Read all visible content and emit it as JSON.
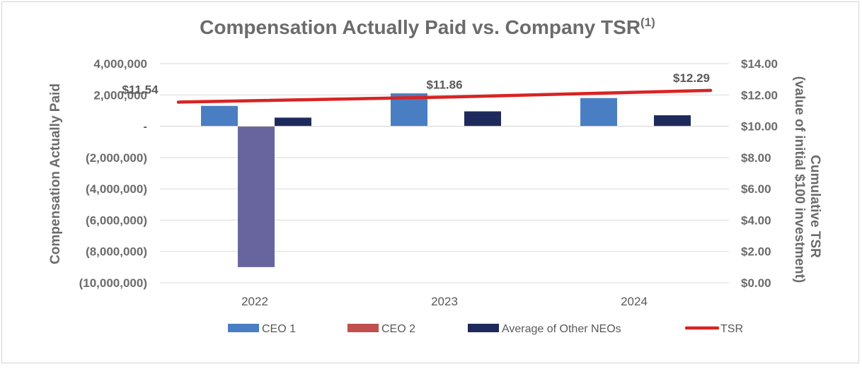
{
  "chart_data": {
    "type": "bar",
    "title": "Compensation Actually Paid vs. Company TSR",
    "title_superscript": "(1)",
    "categories": [
      "2022",
      "2023",
      "2024"
    ],
    "series": [
      {
        "name": "CEO 1",
        "kind": "bar",
        "axis": "left",
        "color": "#4a7ec2",
        "values": [
          1300000,
          2100000,
          1800000
        ]
      },
      {
        "name": "CEO 2",
        "kind": "bar",
        "axis": "left",
        "color": "#68649d",
        "legend_color": "#c0504d",
        "values": [
          -9000000,
          null,
          null
        ]
      },
      {
        "name": "Average of Other NEOs",
        "kind": "bar",
        "axis": "left",
        "color": "#1f2a5c",
        "values": [
          550000,
          950000,
          700000
        ]
      },
      {
        "name": "TSR",
        "kind": "line",
        "axis": "right",
        "color": "#d92323",
        "values": [
          11.54,
          11.86,
          12.29
        ]
      }
    ],
    "tsr_labels": [
      "$11.54",
      "$11.86",
      "$12.29"
    ],
    "left_axis": {
      "label": "Compensation Actually Paid",
      "range": [
        -10000000,
        4000000
      ],
      "ticks": [
        4000000,
        2000000,
        0,
        -2000000,
        -4000000,
        -6000000,
        -8000000,
        -10000000
      ],
      "tick_labels": [
        "4,000,000",
        "2,000,000",
        "-",
        "(2,000,000)",
        "(4,000,000)",
        "(6,000,000)",
        "(8,000,000)",
        "(10,000,000)"
      ]
    },
    "right_axis": {
      "label_line1": "Cumulative TSR",
      "label_line2": "(value of initial $100 investment)",
      "range": [
        0,
        14
      ],
      "ticks": [
        14,
        12,
        10,
        8,
        6,
        4,
        2,
        0
      ],
      "tick_labels": [
        "$14.00",
        "$12.00",
        "$10.00",
        "$8.00",
        "$6.00",
        "$4.00",
        "$2.00",
        "$0.00"
      ]
    },
    "grid": true,
    "legend_position": "bottom"
  }
}
